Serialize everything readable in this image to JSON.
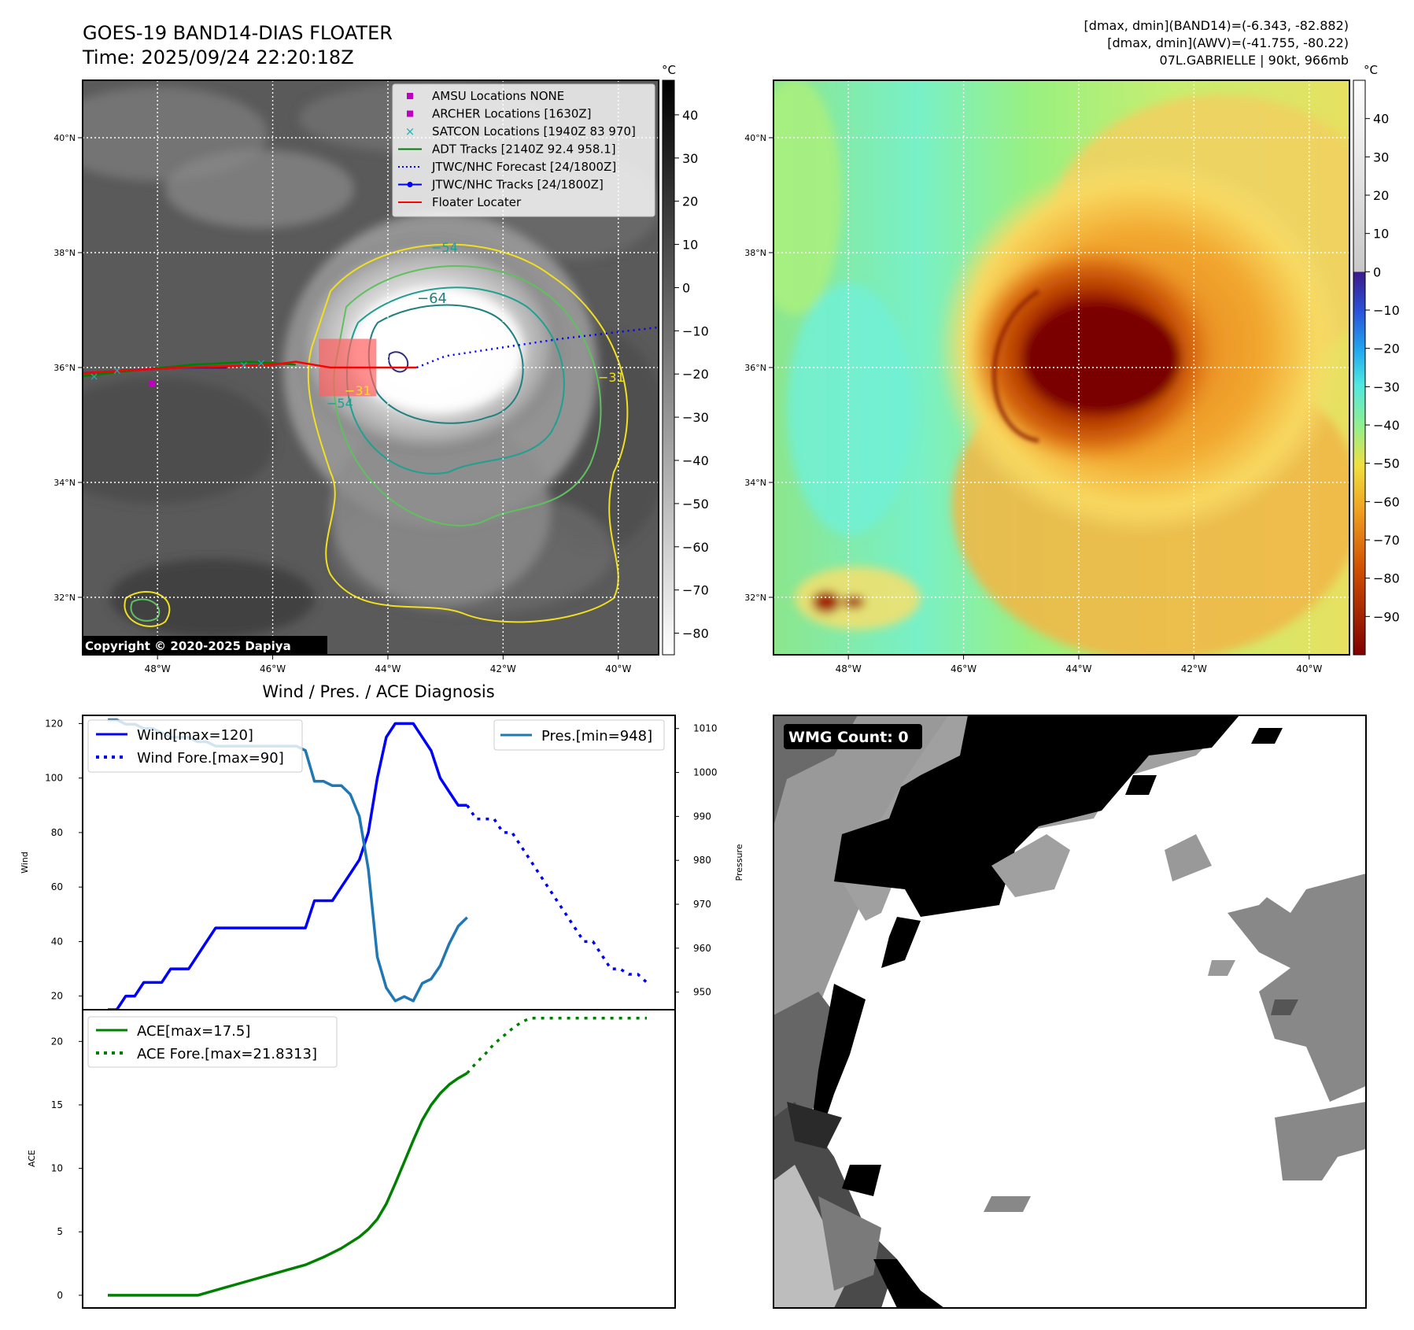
{
  "header": {
    "title_line1": "GOES-19 BAND14-DIAS FLOATER",
    "title_line2": "Time: 2025/09/24 22:20:18Z",
    "info_line1": "[dmax, dmin](BAND14)=(-6.343, -82.882)",
    "info_line2": "[dmax, dmin](AWV)=(-41.755, -80.22)",
    "info_line3": "07L.GABRIELLE | 90kt, 966mb"
  },
  "map_axes": {
    "lat_labels": [
      "40°N",
      "38°N",
      "36°N",
      "34°N",
      "32°N"
    ],
    "lat_values": [
      40,
      38,
      36,
      34,
      32
    ],
    "lon_labels": [
      "48°W",
      "46°W",
      "44°W",
      "42°W",
      "40°W"
    ],
    "lon_values": [
      -48,
      -46,
      -44,
      -42,
      -40
    ],
    "lat_range": [
      31,
      41
    ],
    "lon_range": [
      -49.3,
      -39.3
    ]
  },
  "ir_colorbar": {
    "unit": "°C",
    "ticks": [
      "40",
      "30",
      "20",
      "10",
      "0",
      "−10",
      "−20",
      "−30",
      "−40",
      "−50",
      "−60",
      "−70",
      "−80"
    ],
    "range": [
      -85,
      48
    ]
  },
  "awv_colorbar": {
    "unit": "°C",
    "ticks": [
      "40",
      "30",
      "20",
      "10",
      "0",
      "−10",
      "−20",
      "−30",
      "−40",
      "−50",
      "−60",
      "−70",
      "−80",
      "−90"
    ],
    "range": [
      -100,
      50
    ]
  },
  "legend": {
    "items": [
      {
        "label": "AMSU Locations NONE",
        "color": "#c000c0",
        "marker": "square"
      },
      {
        "label": "ARCHER Locations [1630Z]",
        "color": "#c000c0",
        "marker": "square"
      },
      {
        "label": "SATCON Locations [1940Z 83 970]",
        "color": "#20b0b0",
        "marker": "x"
      },
      {
        "label": "ADT Tracks [2140Z 92.4 958.1]",
        "color": "#008000",
        "marker": "line"
      },
      {
        "label": "JTWC/NHC Forecast [24/1800Z]",
        "color": "#0000ff",
        "marker": "dotted"
      },
      {
        "label": "JTWC/NHC Tracks [24/1800Z]",
        "color": "#0000ff",
        "marker": "line-dot"
      },
      {
        "label": "Floater Locater",
        "color": "#ff0000",
        "marker": "line"
      }
    ]
  },
  "contour_labels": [
    "−64",
    "−54",
    "−31",
    "−54",
    "−31"
  ],
  "copyright": "Copyright © 2020-2025 Dapiya",
  "storm_center": {
    "lat": 36.0,
    "lon": -43.5
  },
  "floater_box": {
    "lat": [
      35.5,
      36.5
    ],
    "lon": [
      -45.2,
      -44.2
    ]
  },
  "diag": {
    "title": "Wind / Pres. / ACE Diagnosis",
    "wind_ylabel": "Wind",
    "pres_ylabel": "Pressure",
    "ace_ylabel": "ACE",
    "wind_ticks": [
      "120",
      "100",
      "80",
      "60",
      "40",
      "20"
    ],
    "pres_ticks": [
      "1010",
      "1000",
      "990",
      "980",
      "970",
      "960",
      "950"
    ],
    "ace_ticks": [
      "20",
      "15",
      "10",
      "5",
      "0"
    ],
    "legend_wind": "Wind[max=120]",
    "legend_wind_fore": "Wind Fore.[max=90]",
    "legend_pres": "Pres.[min=948]",
    "legend_ace": "ACE[max=17.5]",
    "legend_ace_fore": "ACE Fore.[max=21.8313]"
  },
  "chart_data": [
    {
      "type": "line",
      "ylabel": "Wind",
      "ylim": [
        15,
        123
      ],
      "series": [
        {
          "name": "Wind[max=120]",
          "style": "solid",
          "color": "#0000ff",
          "x": [
            0,
            1,
            2,
            3,
            4,
            5,
            6,
            7,
            8,
            9,
            10,
            11,
            12,
            13,
            14,
            15,
            16,
            17,
            18,
            19,
            20,
            21,
            22,
            23,
            24,
            25,
            26,
            27,
            28,
            29,
            30,
            31,
            32,
            33,
            34,
            35,
            36,
            37,
            38,
            39,
            40
          ],
          "values": [
            15,
            15,
            20,
            20,
            25,
            25,
            25,
            30,
            30,
            30,
            35,
            40,
            45,
            45,
            45,
            45,
            45,
            45,
            45,
            45,
            45,
            45,
            45,
            55,
            55,
            55,
            60,
            65,
            70,
            80,
            100,
            115,
            120,
            120,
            120,
            115,
            110,
            100,
            95,
            90,
            90
          ]
        },
        {
          "name": "Wind Fore.[max=90]",
          "style": "dotted",
          "color": "#0000ff",
          "x": [
            40,
            41,
            42,
            43,
            44,
            45,
            46,
            47,
            48,
            49,
            50,
            51,
            52,
            53,
            54,
            55,
            56,
            57,
            58,
            59,
            60
          ],
          "values": [
            90,
            85,
            85,
            85,
            80,
            80,
            75,
            70,
            65,
            60,
            55,
            50,
            45,
            40,
            40,
            35,
            30,
            30,
            28,
            28,
            25
          ]
        }
      ]
    },
    {
      "type": "line",
      "ylabel": "Pressure",
      "ylim": [
        946,
        1013
      ],
      "series": [
        {
          "name": "Pres.[min=948]",
          "style": "solid",
          "color": "#1f77b4",
          "x": [
            0,
            1,
            2,
            3,
            4,
            5,
            6,
            7,
            8,
            9,
            10,
            11,
            12,
            13,
            14,
            15,
            16,
            17,
            18,
            19,
            20,
            21,
            22,
            23,
            24,
            25,
            26,
            27,
            28,
            29,
            30,
            31,
            32,
            33,
            34,
            35,
            36,
            37,
            38,
            39,
            40
          ],
          "values": [
            1012,
            1012,
            1011,
            1011,
            1010,
            1010,
            1009,
            1008,
            1008,
            1008,
            1007,
            1007,
            1006,
            1006,
            1006,
            1006,
            1006,
            1006,
            1006,
            1006,
            1006,
            1006,
            1005,
            998,
            998,
            997,
            997,
            995,
            990,
            978,
            958,
            951,
            948,
            949,
            948,
            952,
            953,
            956,
            961,
            965,
            967
          ]
        }
      ]
    },
    {
      "type": "line",
      "ylabel": "ACE",
      "ylim": [
        -1,
        22.5
      ],
      "series": [
        {
          "name": "ACE[max=17.5]",
          "style": "solid",
          "color": "#008000",
          "x": [
            0,
            2,
            4,
            6,
            8,
            10,
            12,
            14,
            16,
            18,
            20,
            22,
            24,
            26,
            28,
            29,
            30,
            31,
            32,
            33,
            34,
            35,
            36,
            37,
            38,
            39,
            40
          ],
          "values": [
            0,
            0,
            0,
            0,
            0,
            0,
            0.4,
            0.8,
            1.2,
            1.6,
            2.0,
            2.4,
            3.0,
            3.7,
            4.6,
            5.2,
            6.0,
            7.2,
            8.8,
            10.5,
            12.2,
            13.8,
            15.0,
            15.9,
            16.6,
            17.1,
            17.5
          ]
        },
        {
          "name": "ACE Fore.[max=21.8313]",
          "style": "dotted",
          "color": "#008000",
          "x": [
            40,
            41,
            42,
            43,
            44,
            45,
            46,
            47,
            48,
            49,
            50,
            51,
            52,
            53,
            54,
            55,
            56,
            57,
            58,
            59,
            60
          ],
          "values": [
            17.5,
            18.3,
            19.0,
            19.8,
            20.4,
            21.0,
            21.5,
            21.83,
            21.83,
            21.83,
            21.83,
            21.83,
            21.83,
            21.83,
            21.83,
            21.83,
            21.83,
            21.83,
            21.83,
            21.83,
            21.83
          ]
        }
      ]
    }
  ],
  "wmg": {
    "label": "WMG Count: 0"
  }
}
